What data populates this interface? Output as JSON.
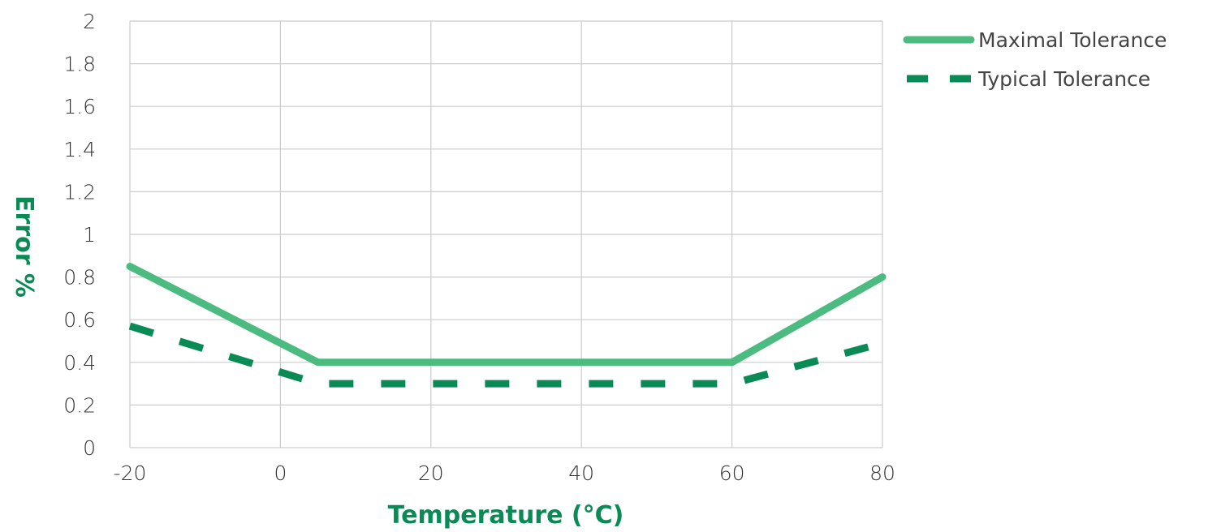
{
  "chart_data": {
    "type": "line",
    "title": "",
    "xlabel": "Temperature (°C)",
    "ylabel": "Error %",
    "xlim": [
      -20,
      80
    ],
    "ylim": [
      0,
      2
    ],
    "x_ticks": [
      "-20",
      "0",
      "20",
      "40",
      "60",
      "80"
    ],
    "y_ticks": [
      "0",
      "0.2",
      "0.4",
      "0.6",
      "0.8",
      "1",
      "1.2",
      "1.4",
      "1.6",
      "1.8",
      "2"
    ],
    "grid": true,
    "legend_position": "top-right",
    "colors": {
      "maximal": "#4cbb7f",
      "typical": "#0a8a55",
      "axis_title": "#0a8a55",
      "grid": "#cccccc"
    },
    "series": [
      {
        "name": "Maximal Tolerance",
        "style": "solid",
        "x": [
          -20,
          5,
          60,
          80
        ],
        "y": [
          0.85,
          0.4,
          0.4,
          0.8
        ]
      },
      {
        "name": "Typical Tolerance",
        "style": "dashed",
        "x": [
          -20,
          5,
          60,
          80
        ],
        "y": [
          0.57,
          0.3,
          0.3,
          0.49
        ]
      }
    ]
  }
}
